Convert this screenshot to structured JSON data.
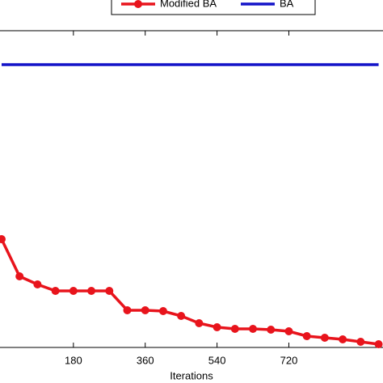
{
  "chart_data": {
    "type": "line",
    "x_label": "Iterations",
    "x": [
      0,
      45,
      90,
      135,
      180,
      225,
      270,
      315,
      360,
      405,
      450,
      495,
      540,
      585,
      630,
      675,
      720,
      765,
      810,
      855,
      900,
      945
    ],
    "series": [
      {
        "name": "Modified BA",
        "color": "#e8141c",
        "markers": true,
        "values": [
          134,
          88,
          78,
          70,
          70,
          70,
          70,
          46,
          46,
          45,
          39,
          30,
          25,
          23,
          23,
          22,
          20,
          14,
          12,
          10,
          7,
          4
        ]
      },
      {
        "name": "BA",
        "color": "#1414c8",
        "markers": false,
        "values": [
          350,
          350,
          350,
          350,
          350,
          350,
          350,
          350,
          350,
          350,
          350,
          350,
          350,
          350,
          350,
          350,
          350,
          350,
          350,
          350,
          350,
          350
        ]
      }
    ],
    "xlim": [
      -4,
      956
    ],
    "ylim": [
      0,
      392
    ],
    "xticks": [
      180,
      360,
      540,
      720
    ]
  }
}
